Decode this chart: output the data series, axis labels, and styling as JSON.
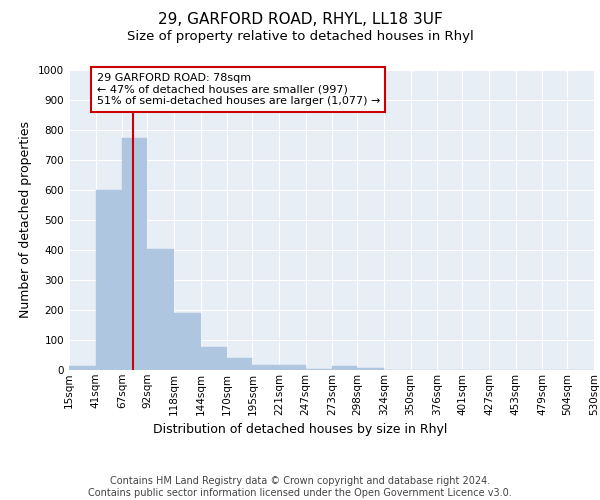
{
  "title": "29, GARFORD ROAD, RHYL, LL18 3UF",
  "subtitle": "Size of property relative to detached houses in Rhyl",
  "xlabel": "Distribution of detached houses by size in Rhyl",
  "ylabel": "Number of detached properties",
  "bar_color": "#aec6df",
  "bar_edgecolor": "#aec6df",
  "background_color": "#e8eef6",
  "grid_color": "#ffffff",
  "vline_x": 78,
  "vline_color": "#cc0000",
  "annotation_text": "29 GARFORD ROAD: 78sqm\n← 47% of detached houses are smaller (997)\n51% of semi-detached houses are larger (1,077) →",
  "annotation_box_color": "#cc0000",
  "bin_edges": [
    15,
    41,
    67,
    92,
    118,
    144,
    170,
    195,
    221,
    247,
    273,
    298,
    324,
    350,
    376,
    401,
    427,
    453,
    479,
    504,
    530
  ],
  "bin_heights": [
    15,
    600,
    775,
    405,
    190,
    78,
    40,
    17,
    16,
    5,
    13,
    7,
    0,
    0,
    0,
    0,
    0,
    0,
    0,
    0
  ],
  "ylim": [
    0,
    1000
  ],
  "yticks": [
    0,
    100,
    200,
    300,
    400,
    500,
    600,
    700,
    800,
    900,
    1000
  ],
  "footer_text": "Contains HM Land Registry data © Crown copyright and database right 2024.\nContains public sector information licensed under the Open Government Licence v3.0.",
  "title_fontsize": 11,
  "subtitle_fontsize": 9.5,
  "xlabel_fontsize": 9,
  "ylabel_fontsize": 9,
  "tick_fontsize": 7.5,
  "footer_fontsize": 7
}
